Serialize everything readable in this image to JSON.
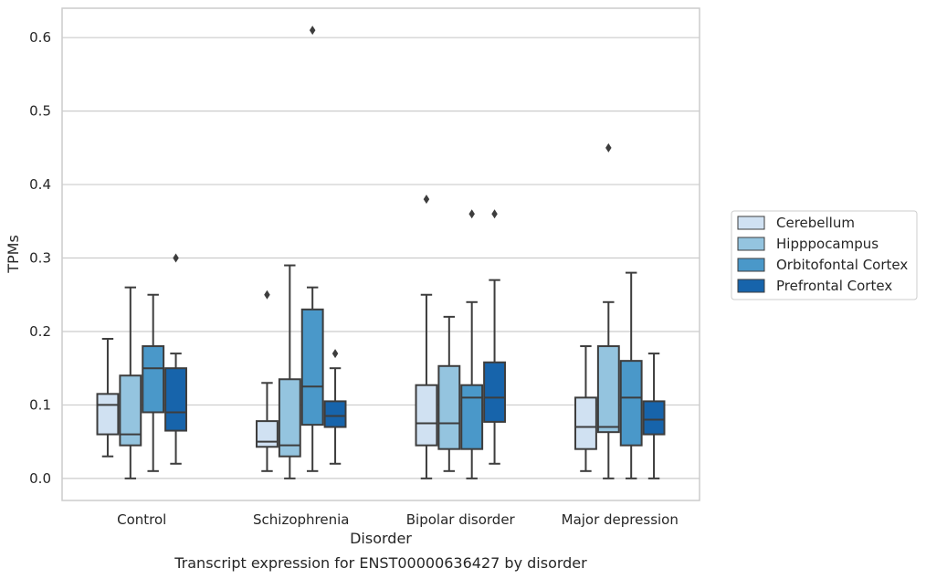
{
  "caption": "Transcript expression for ENST00000636427 by disorder",
  "chart_data": {
    "type": "box",
    "xlabel": "Disorder",
    "ylabel": "TPMs",
    "ylim": [
      -0.03,
      0.64
    ],
    "yticks": [
      0.0,
      0.1,
      0.2,
      0.3,
      0.4,
      0.5,
      0.6
    ],
    "ytick_labels": [
      "0.0",
      "0.1",
      "0.2",
      "0.3",
      "0.4",
      "0.5",
      "0.6"
    ],
    "grid": "horizontal",
    "legend_position": "right",
    "categories": [
      "Control",
      "Schizophrenia",
      "Bipolar disorder",
      "Major depression"
    ],
    "series": [
      {
        "name": "Cerebellum",
        "color": "#d0e1f2",
        "boxes": [
          {
            "whislo": 0.03,
            "q1": 0.06,
            "med": 0.1,
            "q3": 0.115,
            "whishi": 0.19,
            "fliers": []
          },
          {
            "whislo": 0.01,
            "q1": 0.043,
            "med": 0.05,
            "q3": 0.078,
            "whishi": 0.13,
            "fliers": [
              0.25
            ]
          },
          {
            "whislo": 0.0,
            "q1": 0.045,
            "med": 0.075,
            "q3": 0.127,
            "whishi": 0.25,
            "fliers": [
              0.38
            ]
          },
          {
            "whislo": 0.01,
            "q1": 0.04,
            "med": 0.07,
            "q3": 0.11,
            "whishi": 0.18,
            "fliers": []
          }
        ]
      },
      {
        "name": "Hipppocampus",
        "color": "#94c4df",
        "boxes": [
          {
            "whislo": 0.0,
            "q1": 0.045,
            "med": 0.06,
            "q3": 0.14,
            "whishi": 0.26,
            "fliers": []
          },
          {
            "whislo": 0.0,
            "q1": 0.03,
            "med": 0.045,
            "q3": 0.135,
            "whishi": 0.29,
            "fliers": []
          },
          {
            "whislo": 0.01,
            "q1": 0.04,
            "med": 0.075,
            "q3": 0.153,
            "whishi": 0.22,
            "fliers": []
          },
          {
            "whislo": 0.0,
            "q1": 0.063,
            "med": 0.07,
            "q3": 0.18,
            "whishi": 0.24,
            "fliers": [
              0.45
            ]
          }
        ]
      },
      {
        "name": "Orbitofontal Cortex",
        "color": "#4a98c9",
        "boxes": [
          {
            "whislo": 0.01,
            "q1": 0.09,
            "med": 0.15,
            "q3": 0.18,
            "whishi": 0.25,
            "fliers": []
          },
          {
            "whislo": 0.01,
            "q1": 0.073,
            "med": 0.125,
            "q3": 0.23,
            "whishi": 0.26,
            "fliers": [
              0.61
            ]
          },
          {
            "whislo": 0.0,
            "q1": 0.04,
            "med": 0.11,
            "q3": 0.127,
            "whishi": 0.24,
            "fliers": [
              0.36
            ]
          },
          {
            "whislo": 0.0,
            "q1": 0.045,
            "med": 0.11,
            "q3": 0.16,
            "whishi": 0.28,
            "fliers": []
          }
        ]
      },
      {
        "name": "Prefrontal Cortex",
        "color": "#1764ab",
        "boxes": [
          {
            "whislo": 0.02,
            "q1": 0.065,
            "med": 0.09,
            "q3": 0.15,
            "whishi": 0.17,
            "fliers": [
              0.3
            ]
          },
          {
            "whislo": 0.02,
            "q1": 0.07,
            "med": 0.085,
            "q3": 0.105,
            "whishi": 0.15,
            "fliers": [
              0.17
            ]
          },
          {
            "whislo": 0.02,
            "q1": 0.077,
            "med": 0.11,
            "q3": 0.158,
            "whishi": 0.27,
            "fliers": [
              0.36
            ]
          },
          {
            "whislo": 0.0,
            "q1": 0.06,
            "med": 0.08,
            "q3": 0.105,
            "whishi": 0.17,
            "fliers": []
          }
        ]
      }
    ]
  }
}
